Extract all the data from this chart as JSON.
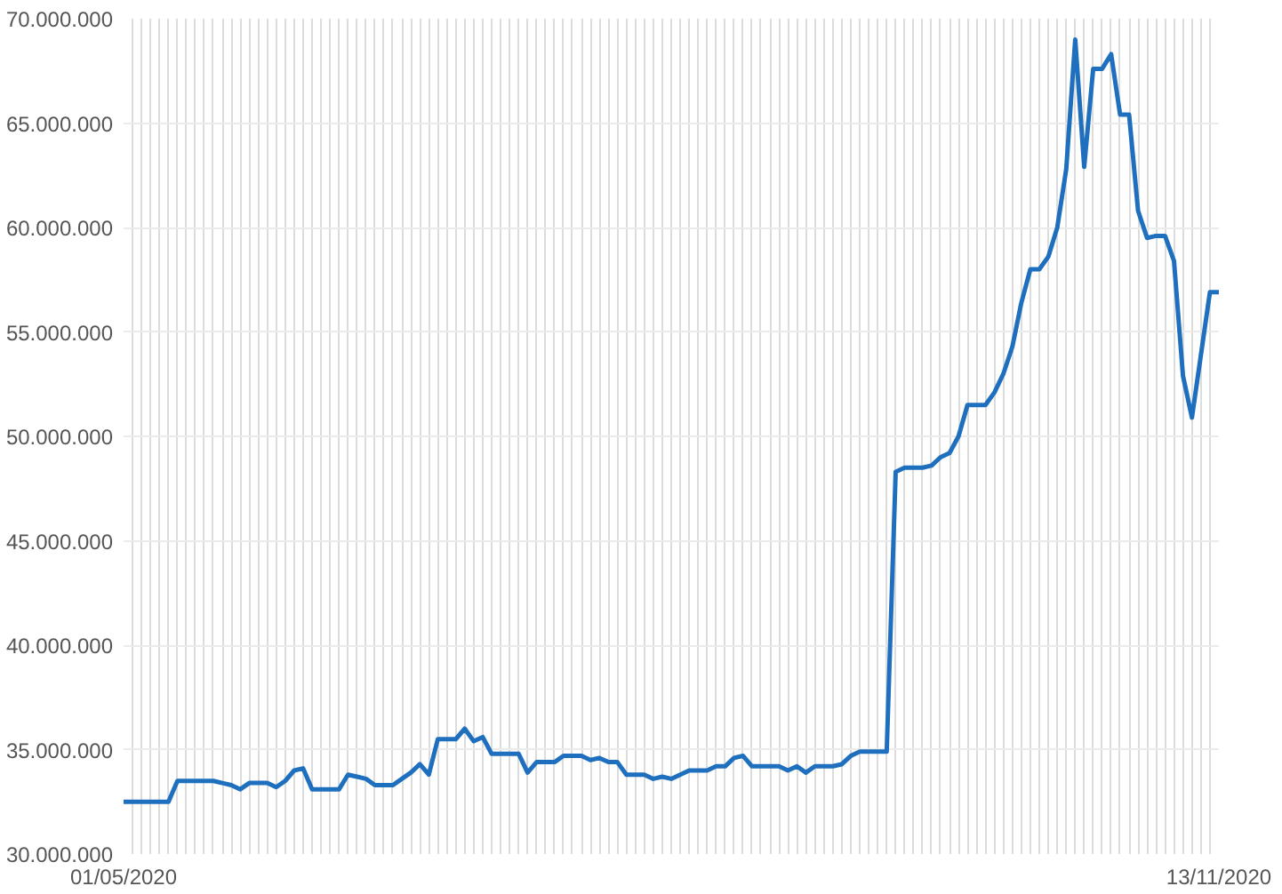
{
  "chart_data": {
    "type": "line",
    "categories": [
      "01/05/2020",
      null,
      null,
      null,
      null,
      null,
      null,
      null,
      null,
      null,
      null,
      null,
      null,
      null,
      null,
      null,
      null,
      null,
      null,
      null,
      null,
      null,
      null,
      null,
      null,
      null,
      null,
      null,
      null,
      null,
      null,
      null,
      null,
      null,
      null,
      null,
      null,
      null,
      null,
      null,
      null,
      null,
      null,
      null,
      null,
      null,
      null,
      null,
      null,
      null,
      null,
      null,
      null,
      null,
      null,
      null,
      null,
      null,
      null,
      null,
      null,
      null,
      null,
      null,
      null,
      null,
      null,
      null,
      null,
      null,
      null,
      null,
      null,
      null,
      null,
      null,
      null,
      null,
      null,
      null,
      null,
      null,
      null,
      null,
      null,
      null,
      null,
      null,
      null,
      null,
      null,
      null,
      null,
      null,
      null,
      null,
      null,
      null,
      null,
      null,
      null,
      null,
      null,
      null,
      null,
      null,
      null,
      null,
      null,
      null,
      null,
      null,
      null,
      null,
      null,
      null,
      null,
      null,
      null,
      null,
      null,
      null,
      "13/11/2020"
    ],
    "series": [
      {
        "color": "#1f6fbf",
        "values": [
          32500000,
          32500000,
          32500000,
          32500000,
          32500000,
          32500000,
          33500000,
          33500000,
          33500000,
          33500000,
          33500000,
          33400000,
          33300000,
          33100000,
          33400000,
          33400000,
          33400000,
          33200000,
          33500000,
          34000000,
          34100000,
          33100000,
          33100000,
          33100000,
          33100000,
          33800000,
          33700000,
          33600000,
          33300000,
          33300000,
          33300000,
          33600000,
          33900000,
          34300000,
          33800000,
          35500000,
          35500000,
          35500000,
          36000000,
          35400000,
          35600000,
          34800000,
          34800000,
          34800000,
          34800000,
          33900000,
          34400000,
          34400000,
          34400000,
          34700000,
          34700000,
          34700000,
          34500000,
          34600000,
          34400000,
          34400000,
          33800000,
          33800000,
          33800000,
          33600000,
          33700000,
          33600000,
          33800000,
          34000000,
          34000000,
          34000000,
          34200000,
          34200000,
          34600000,
          34700000,
          34200000,
          34200000,
          34200000,
          34200000,
          34000000,
          34200000,
          33900000,
          34200000,
          34200000,
          34200000,
          34300000,
          34700000,
          34900000,
          34900000,
          34900000,
          34900000,
          48300000,
          48500000,
          48500000,
          48500000,
          48600000,
          49000000,
          49200000,
          50000000,
          51500000,
          51500000,
          51500000,
          52100000,
          53000000,
          54300000,
          56400000,
          58000000,
          58000000,
          58600000,
          60000000,
          62800000,
          69000000,
          62900000,
          67600000,
          67600000,
          68300000,
          65400000,
          65400000,
          60800000,
          59500000,
          59600000,
          59600000,
          58400000,
          52900000,
          50900000,
          53900000,
          56900000,
          56900000
        ]
      }
    ],
    "ylim": [
      30000000,
      70000000
    ],
    "yticks": [
      {
        "value": 30000000,
        "label": "30.000.000"
      },
      {
        "value": 35000000,
        "label": "35.000.000"
      },
      {
        "value": 40000000,
        "label": "40.000.000"
      },
      {
        "value": 45000000,
        "label": "45.000.000"
      },
      {
        "value": 50000000,
        "label": "50.000.000"
      },
      {
        "value": 55000000,
        "label": "55.000.000"
      },
      {
        "value": 60000000,
        "label": "60.000.000"
      },
      {
        "value": 65000000,
        "label": "65.000.000"
      },
      {
        "value": 70000000,
        "label": "70.000.000"
      }
    ],
    "grid": true
  }
}
